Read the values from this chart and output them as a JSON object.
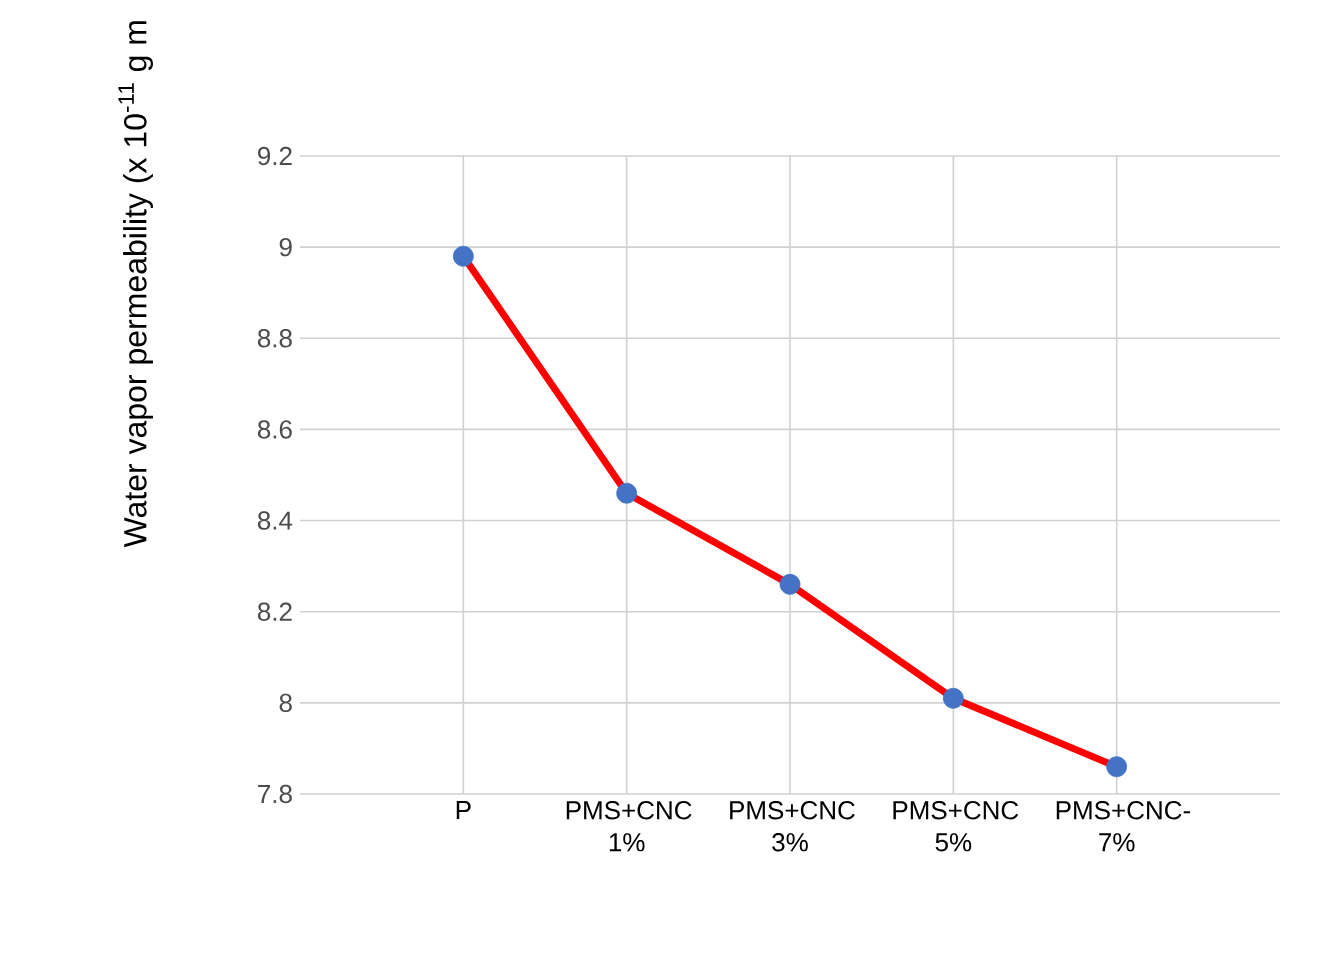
{
  "chart_data": {
    "type": "line",
    "ylabel": "Water vapor permeability  (x 10$^{-11}$ g m",
    "categories": [
      "P",
      "PMS+CNC 1%",
      "PMS+CNC 3%",
      "PMS+CNC 5%",
      "PMS+CNC-7%"
    ],
    "series": [
      {
        "color": "#ff0000",
        "colors": [
          "#4472c4",
          "#4472c4",
          "#4472c4",
          "#4472c4",
          "#4472c4"
        ],
        "values": [
          8.98,
          8.46,
          8.26,
          8.01,
          7.86
        ]
      }
    ],
    "ylim": [
      7.8,
      9.2
    ],
    "yticks": [
      7.8,
      8,
      8.2,
      8.4,
      8.6,
      8.8,
      9,
      9.2
    ],
    "grid": true,
    "marker": "circle",
    "line_style": "solid"
  }
}
